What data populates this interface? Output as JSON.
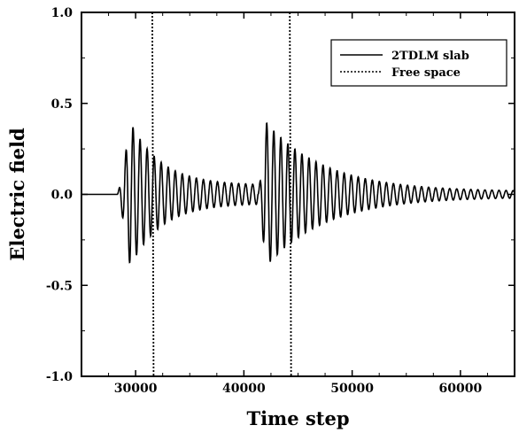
{
  "chart_data": {
    "type": "line",
    "xlabel": "Time step",
    "ylabel": "Electric field",
    "xlim": [
      25000,
      65000
    ],
    "ylim": [
      -1.0,
      1.0
    ],
    "x_ticks": [
      30000,
      40000,
      50000,
      60000
    ],
    "y_ticks": [
      1.0,
      0.5,
      0.0,
      -0.5,
      -1.0
    ],
    "y_tick_labels": [
      "1.0",
      "0.5",
      "0.0",
      "-0.5",
      "-1.0"
    ],
    "grid": false,
    "legend_position": "top-right",
    "series": [
      {
        "name": "2TDLM slab",
        "style": "solid",
        "baseline_until": 28300,
        "oscillation_period": 650,
        "packets": [
          {
            "start": 28300,
            "peak": 29500,
            "peak_amplitude": 0.4,
            "decay_to": 0.05
          },
          {
            "start": 41300,
            "peak": 42000,
            "peak_amplitude": 0.4,
            "decay_to": 0.015
          }
        ]
      },
      {
        "name": "Free space",
        "style": "dotted",
        "pulses": [
          31600,
          44300
        ],
        "pulse_amplitude": 1.0
      }
    ]
  }
}
